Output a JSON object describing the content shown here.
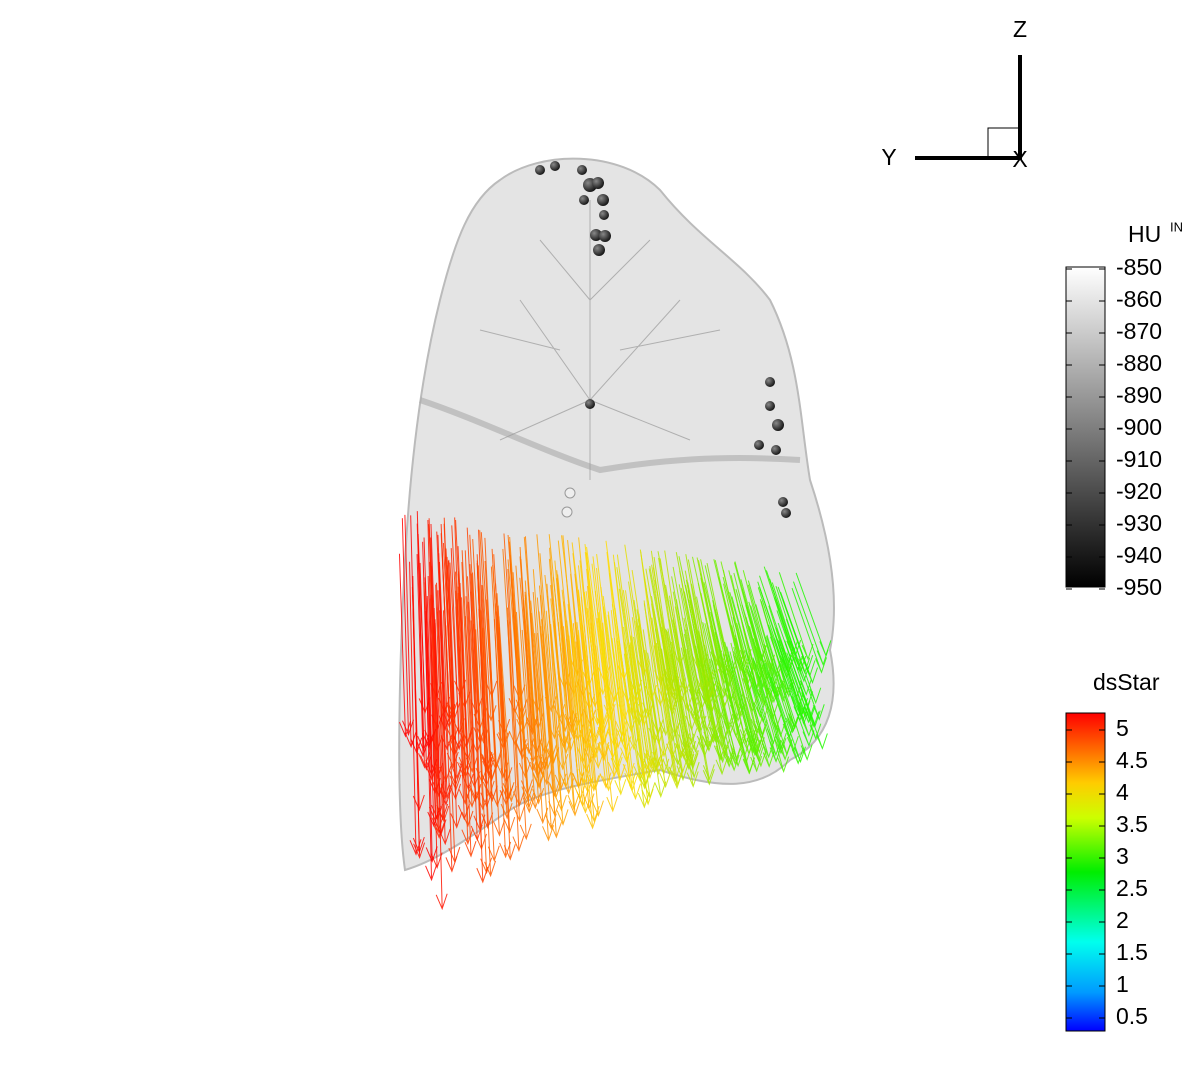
{
  "axis_triad": {
    "z_label": "Z",
    "y_label": "Y",
    "x_label": "X"
  },
  "legends": [
    {
      "title": "HU",
      "title_superscript": "IN",
      "ticks": [
        -850,
        -860,
        -870,
        -880,
        -890,
        -900,
        -910,
        -920,
        -930,
        -940,
        -950
      ]
    },
    {
      "title": "dsStar",
      "ticks": [
        5,
        4.5,
        4,
        3.5,
        3,
        2.5,
        2,
        1.5,
        1,
        0.5
      ]
    }
  ]
}
